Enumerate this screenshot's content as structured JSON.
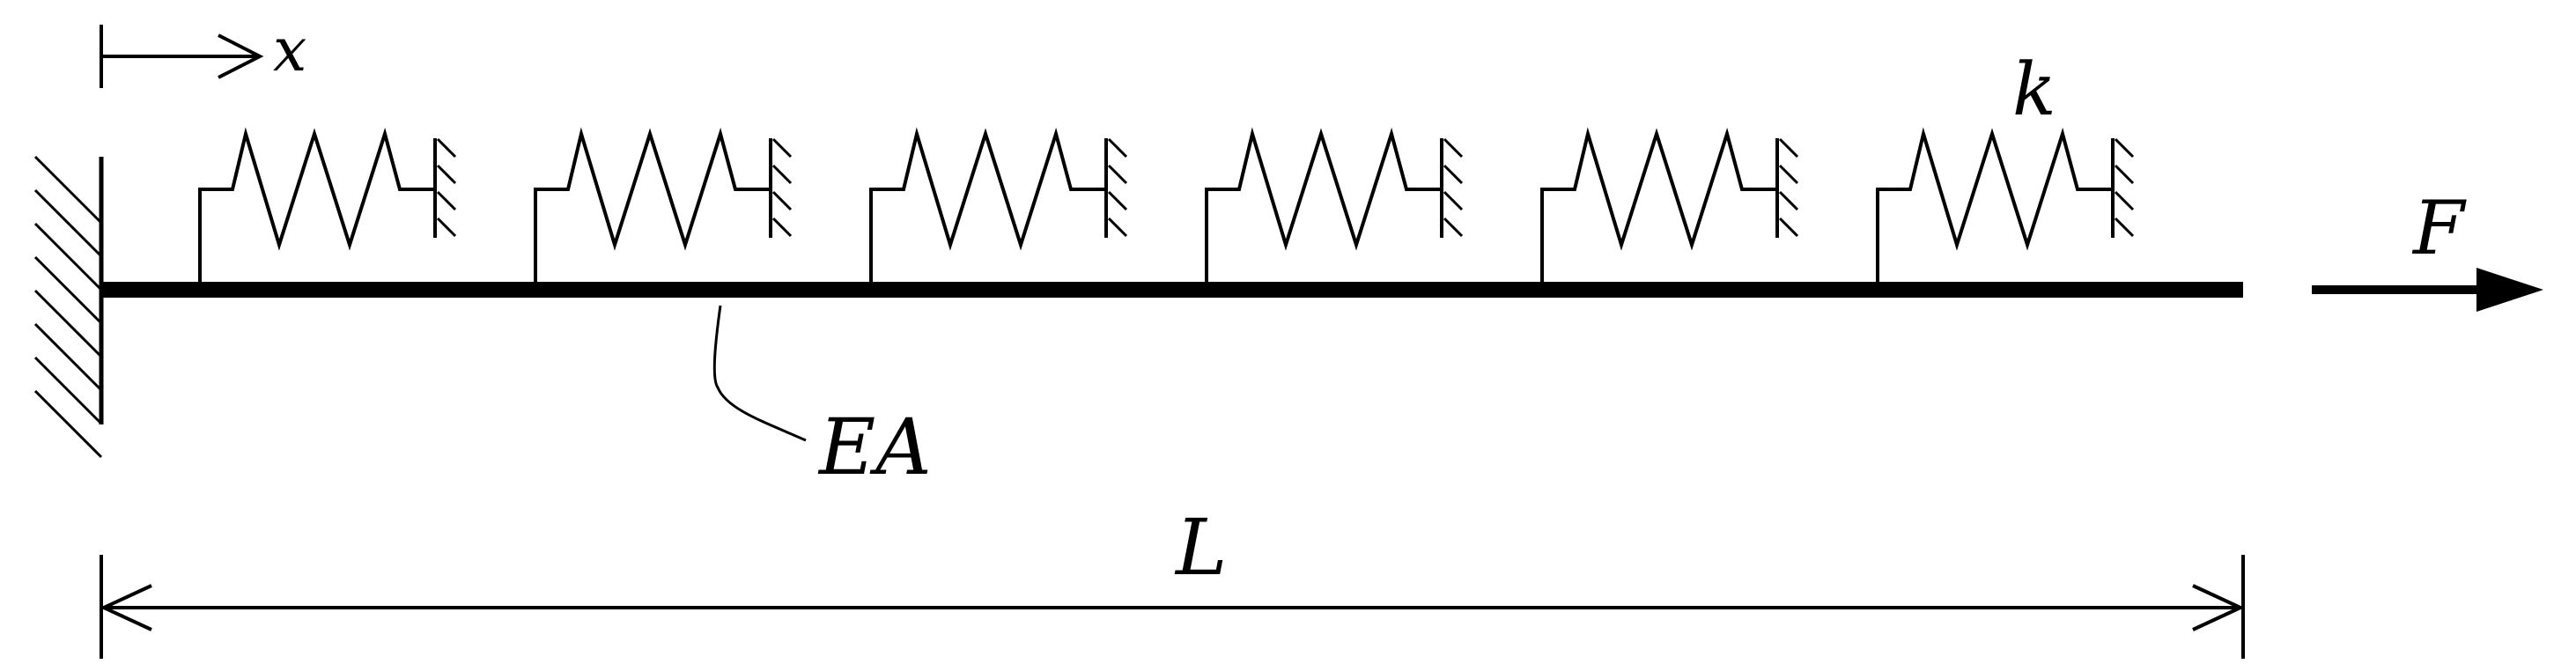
{
  "labels": {
    "x": "x",
    "k": "k",
    "F": "F",
    "EA": "EA",
    "L": "L"
  },
  "springs": {
    "count": 6
  },
  "colors": {
    "ink": "#000000",
    "background": "#ffffff"
  }
}
